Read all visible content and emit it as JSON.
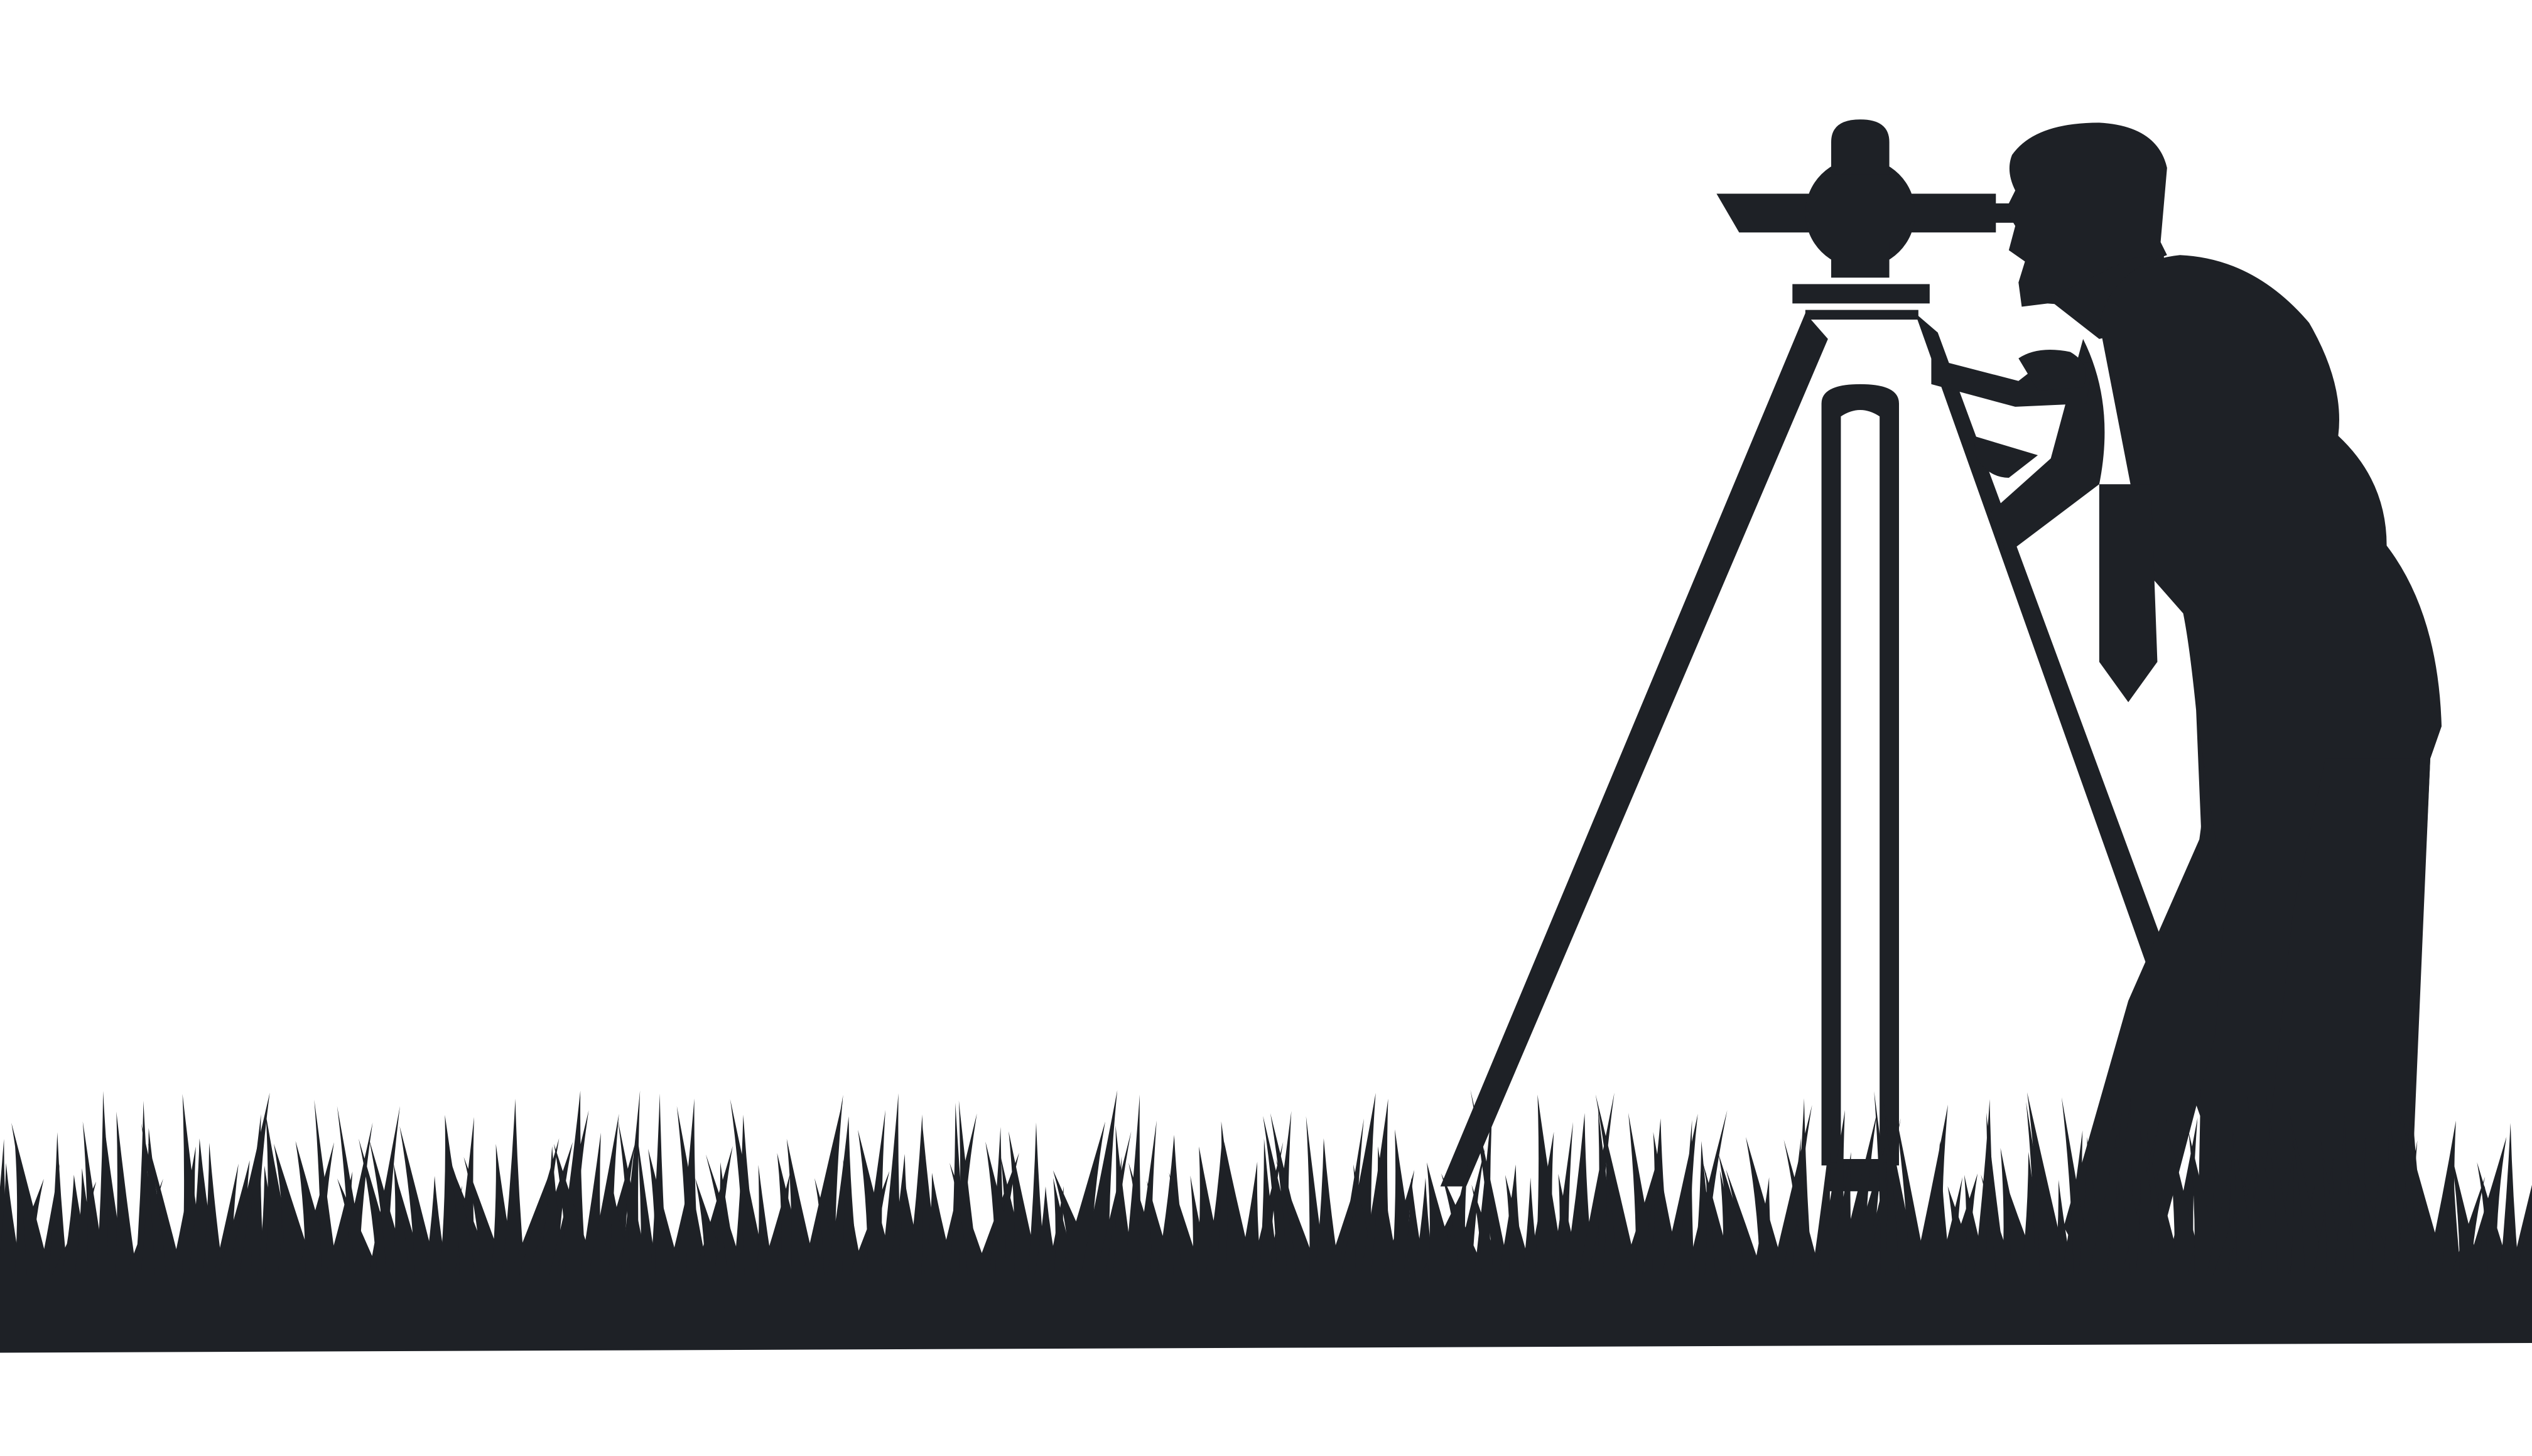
{
  "colors": {
    "background": "#ffffff",
    "silhouette": "#1e2126"
  },
  "scene": {
    "subject": "surveyor-silhouette",
    "elements": [
      "surveyor",
      "theodolite",
      "tripod",
      "grass",
      "ground"
    ]
  }
}
